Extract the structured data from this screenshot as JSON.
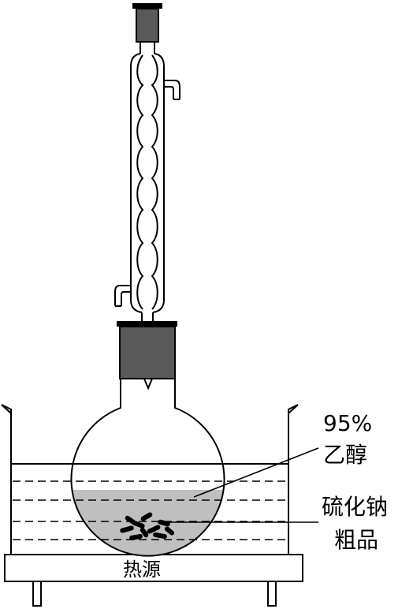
{
  "labels": {
    "ethanol_line1": "95%",
    "ethanol_line2": "乙醇",
    "crude_line1": "硫化钠",
    "crude_line2": "粗品",
    "heat_source": "热源"
  },
  "colors": {
    "stroke": "#000000",
    "stopper": "#595959",
    "liquid": "#bfbfbf",
    "background": "#ffffff"
  }
}
